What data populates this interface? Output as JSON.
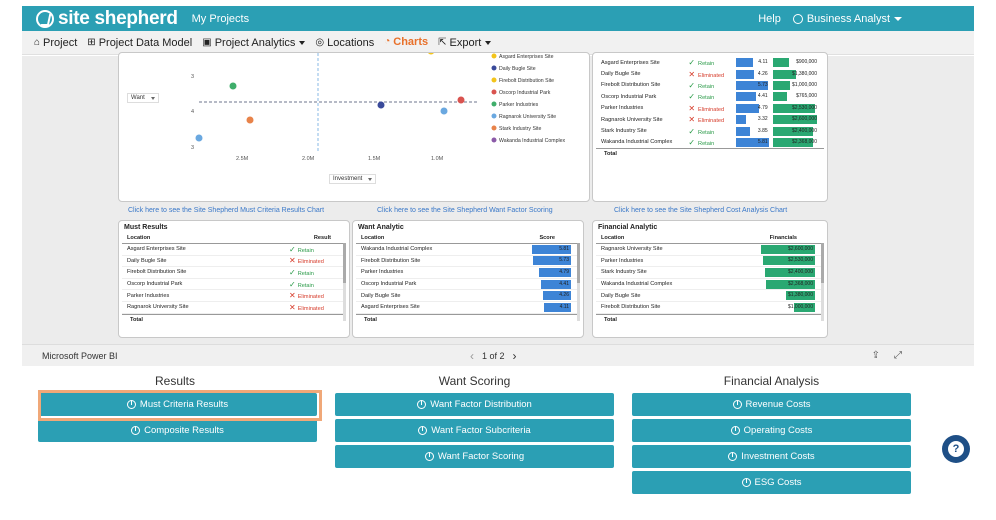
{
  "header": {
    "logo_text": "site shepherd",
    "my_projects": "My Projects",
    "help": "Help",
    "user": "Business Analyst"
  },
  "menu": [
    {
      "icon": "⌂",
      "label": "Project",
      "caret": false,
      "active": false
    },
    {
      "icon": "⊞",
      "label": "Project Data Model",
      "caret": false,
      "active": false
    },
    {
      "icon": "▣",
      "label": "Project Analytics",
      "caret": true,
      "active": false
    },
    {
      "icon": "◎",
      "label": "Locations",
      "caret": false,
      "active": false
    },
    {
      "icon": "◔",
      "label": "Charts",
      "caret": false,
      "active": true
    },
    {
      "icon": "⇱",
      "label": "Export",
      "caret": true,
      "active": false
    }
  ],
  "scatter": {
    "y_ticks": [
      "3",
      "4",
      "3"
    ],
    "x_ticks": [
      "2.5M",
      "2.0M",
      "1.5M",
      "1.0M"
    ],
    "y_dropdown": "Want",
    "x_dropdown": "Investment",
    "legend": [
      {
        "label": "Asgard Enterprises Site",
        "color": "#f3c41b"
      },
      {
        "label": "Daily Bugle Site",
        "color": "#3a4a9a"
      },
      {
        "label": "Firebolt Distribution Site",
        "color": "#f3c41b"
      },
      {
        "label": "Oscorp Industrial Park",
        "color": "#d9534f"
      },
      {
        "label": "Parker Industries",
        "color": "#3fae6b"
      },
      {
        "label": "Ragnarok University Site",
        "color": "#6aa8e0"
      },
      {
        "label": "Stark Industry Site",
        "color": "#e8834a"
      },
      {
        "label": "Wakanda Industrial Complex",
        "color": "#8b5aa8"
      }
    ]
  },
  "cost_summary": {
    "rows": [
      {
        "loc": "Asgard Enterprises Site",
        "result": "Retain",
        "ok": true,
        "score": "4.11",
        "score_frac": 0.5,
        "cost": "$900,000",
        "cost_frac": 0.35
      },
      {
        "loc": "Daily Bugle Site",
        "result": "Eliminated",
        "ok": false,
        "score": "4.26",
        "score_frac": 0.55,
        "cost": "$1,380,000",
        "cost_frac": 0.5
      },
      {
        "loc": "Firebolt Distribution Site",
        "result": "Retain",
        "ok": true,
        "score": "5.73",
        "score_frac": 0.95,
        "cost": "$1,000,000",
        "cost_frac": 0.38
      },
      {
        "loc": "Oscorp Industrial Park",
        "result": "Retain",
        "ok": true,
        "score": "4.41",
        "score_frac": 0.6,
        "cost": "$765,000",
        "cost_frac": 0.3
      },
      {
        "loc": "Parker Industries",
        "result": "Eliminated",
        "ok": false,
        "score": "4.79",
        "score_frac": 0.7,
        "cost": "$2,530,000",
        "cost_frac": 0.92
      },
      {
        "loc": "Ragnarok University Site",
        "result": "Eliminated",
        "ok": false,
        "score": "3.32",
        "score_frac": 0.3,
        "cost": "$2,600,000",
        "cost_frac": 0.95
      },
      {
        "loc": "Stark Industry Site",
        "result": "Retain",
        "ok": true,
        "score": "3.85",
        "score_frac": 0.42,
        "cost": "$2,400,000",
        "cost_frac": 0.88
      },
      {
        "loc": "Wakanda Industrial Complex",
        "result": "Retain",
        "ok": true,
        "score": "5.81",
        "score_frac": 0.98,
        "cost": "$2,368,000",
        "cost_frac": 0.86
      }
    ],
    "total": "Total"
  },
  "links": {
    "must": "Click here to see the Site Shepherd Must Criteria Results Chart",
    "want": "Click here to see the Site Shepherd Want Factor Scoring",
    "cost": "Click here to see the Site Shepherd Cost Analysis Chart"
  },
  "must_results": {
    "title": "Must Results",
    "col_location": "Location",
    "col_result": "Result",
    "rows": [
      {
        "loc": "Asgard Enterprises Site",
        "result": "Retain",
        "ok": true
      },
      {
        "loc": "Daily Bugle Site",
        "result": "Eliminated",
        "ok": false
      },
      {
        "loc": "Firebolt Distribution Site",
        "result": "Retain",
        "ok": true
      },
      {
        "loc": "Oscorp Industrial Park",
        "result": "Retain",
        "ok": true
      },
      {
        "loc": "Parker Industries",
        "result": "Eliminated",
        "ok": false
      },
      {
        "loc": "Ragnarok University Site",
        "result": "Eliminated",
        "ok": false
      }
    ],
    "total": "Total"
  },
  "want_analytic": {
    "title": "Want Analytic",
    "col_location": "Location",
    "col_score": "Score",
    "rows": [
      {
        "loc": "Wakanda Industrial Complex",
        "score": "5.81",
        "frac": 0.98
      },
      {
        "loc": "Firebolt Distribution Site",
        "score": "5.73",
        "frac": 0.96
      },
      {
        "loc": "Parker Industries",
        "score": "4.79",
        "frac": 0.8
      },
      {
        "loc": "Oscorp Industrial Park",
        "score": "4.41",
        "frac": 0.74
      },
      {
        "loc": "Daily Bugle Site",
        "score": "4.26",
        "frac": 0.71
      },
      {
        "loc": "Asgard Enterprises Site",
        "score": "4.11",
        "frac": 0.68
      }
    ],
    "total": "Total"
  },
  "financial_analytic": {
    "title": "Financial Analytic",
    "col_location": "Location",
    "col_financials": "Financials",
    "rows": [
      {
        "loc": "Ragnarok University Site",
        "cost": "$2,600,000",
        "frac": 1.0
      },
      {
        "loc": "Parker Industries",
        "cost": "$2,530,000",
        "frac": 0.97
      },
      {
        "loc": "Stark Industry Site",
        "cost": "$2,400,000",
        "frac": 0.92
      },
      {
        "loc": "Wakanda Industrial Complex",
        "cost": "$2,368,000",
        "frac": 0.91
      },
      {
        "loc": "Daily Bugle Site",
        "cost": "$1,380,000",
        "frac": 0.53
      },
      {
        "loc": "Firebolt Distribution Site",
        "cost": "$1,000,000",
        "frac": 0.38
      }
    ],
    "total": "Total"
  },
  "pbi_footer": {
    "brand": "Microsoft Power BI",
    "page": "1 of 2"
  },
  "selector": {
    "results_title": "Results",
    "want_title": "Want Scoring",
    "fin_title": "Financial Analysis",
    "results_buttons": [
      "Must Criteria Results",
      "Composite Results"
    ],
    "want_buttons": [
      "Want Factor Distribution",
      "Want Factor Subcriteria",
      "Want Factor Scoring"
    ],
    "fin_buttons": [
      "Revenue Costs",
      "Operating Costs",
      "Investment Costs",
      "ESG Costs"
    ]
  },
  "colors": {
    "brand": "#2b9fb4",
    "active": "#e8702a",
    "score_bar": "#3d84d6",
    "cost_bar": "#2aa872"
  }
}
